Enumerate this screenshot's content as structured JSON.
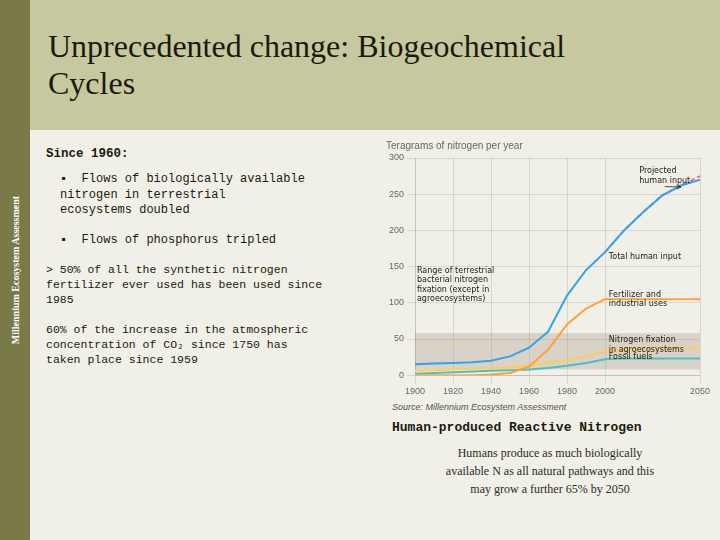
{
  "slide": {
    "side_label": "Millennium Ecosystem Assessment",
    "title": "Unprecedented change: Biogeochemical\nCycles",
    "since_text": "Since 1960:",
    "bullets": [
      "▪  Flows of biologically available\nnitrogen in terrestrial\necosystems doubled",
      "▪  Flows of phosphorus tripled"
    ],
    "paragraphs": [
      "> 50% of all the synthetic nitrogen\nfertilizer ever used has been used since\n1985",
      "60% of the increase in the atmospheric\nconcentration of CO₂ since 1750 has\ntaken place since 1959"
    ],
    "source": "Source: Millennium Ecosystem Assessment",
    "caption_title": "Human-produced Reactive Nitrogen",
    "caption_body": "Humans produce as much biologically\navailable N as all natural pathways and this\nmay grow a further 65% by 2050"
  },
  "chart_data": {
    "type": "line",
    "title": "Teragrams of nitrogen per year",
    "x": [
      1900,
      1910,
      1920,
      1930,
      1940,
      1950,
      1960,
      1970,
      1980,
      1990,
      2000,
      2010,
      2020,
      2030,
      2040,
      2050
    ],
    "series": [
      {
        "values": [
          15,
          16,
          17,
          18,
          20,
          26,
          38,
          60,
          110,
          145,
          170,
          200,
          225,
          248,
          262,
          270
        ],
        "line_style": "solid"
      },
      {
        "values": [
          null,
          null,
          null,
          null,
          null,
          null,
          null,
          null,
          null,
          null,
          170,
          200,
          225,
          248,
          262,
          275
        ],
        "line_style": "dashed"
      },
      {
        "values": [
          0,
          0,
          0,
          0,
          1,
          3,
          12,
          35,
          70,
          92,
          105,
          105,
          105,
          105,
          105,
          105
        ],
        "line_style": "solid"
      },
      {
        "values": [
          6,
          7,
          8,
          9,
          10,
          11,
          13,
          17,
          21,
          26,
          33,
          36,
          37,
          38,
          38,
          38
        ],
        "line_style": "solid"
      },
      {
        "values": [
          2,
          3,
          4,
          5,
          6,
          7,
          8,
          10,
          13,
          17,
          22,
          23,
          23,
          23,
          23,
          23
        ],
        "line_style": "solid"
      }
    ],
    "band": {
      "low": 8,
      "high": 58
    },
    "xlim": [
      1900,
      2050
    ],
    "xticks": [
      1900,
      1920,
      1940,
      1960,
      1980,
      2000,
      2050
    ],
    "ylim": [
      0,
      300
    ],
    "yticks": [
      0,
      50,
      100,
      150,
      200,
      250,
      300
    ],
    "grid": true,
    "annotations": [
      {
        "text": "Total human input",
        "x": 2002,
        "y": 163
      },
      {
        "text": "Fertilizer and\nindustrial uses",
        "x": 2002,
        "y": 105
      },
      {
        "text": "Nitrogen fixation\nin agroecosystems",
        "x": 2002,
        "y": 42
      },
      {
        "text": "Fossil fuels",
        "x": 2002,
        "y": 25
      },
      {
        "text": "Projected\nhuman input",
        "x": 2018,
        "y": 275,
        "arrow_x": 2040,
        "arrow_y": 260
      },
      {
        "text": "Range of terrestrial\nbacterial nitrogen\nfixation (except in\nagroecosystems)",
        "x": 1901,
        "y": 125
      }
    ]
  }
}
